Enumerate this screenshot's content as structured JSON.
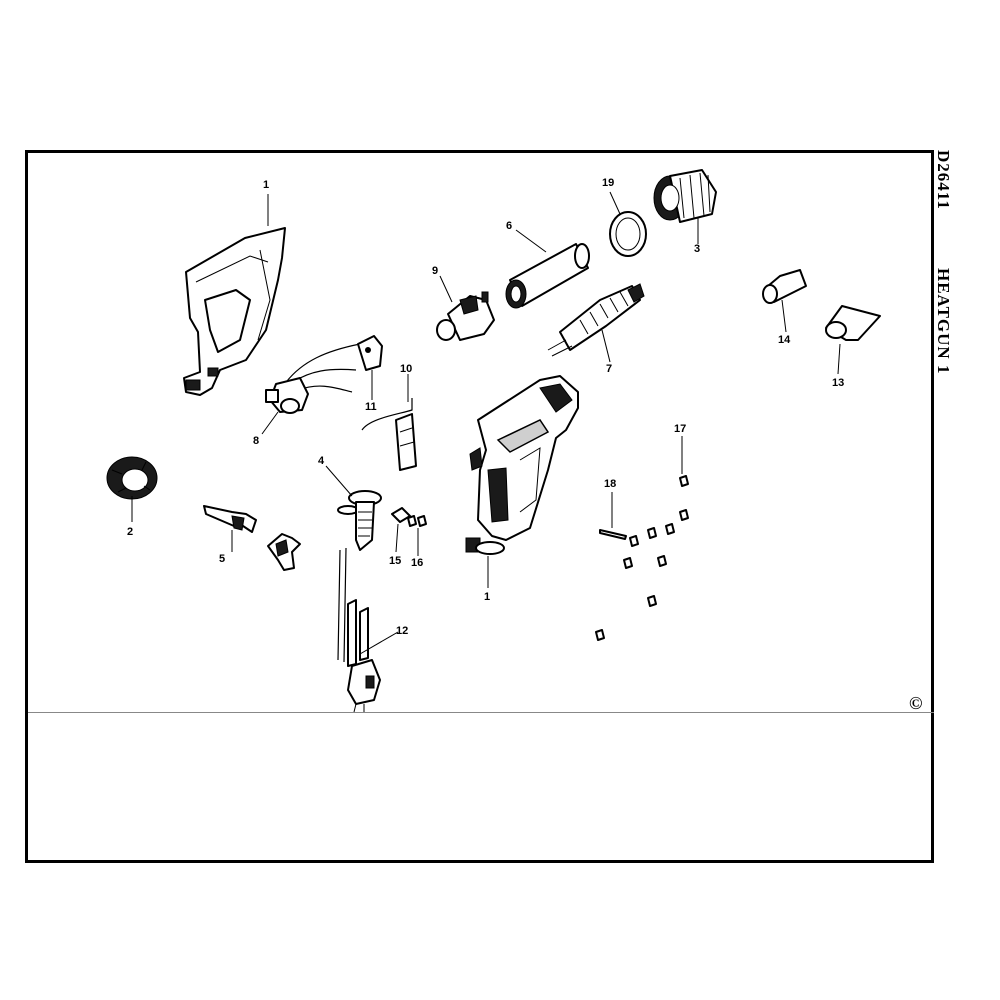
{
  "header": {
    "model": "D26411",
    "title": "HEATGUN  1"
  },
  "copyright_symbol": "©",
  "callouts": {
    "c1a": "1",
    "c1b": "1",
    "c2": "2",
    "c3": "3",
    "c4": "4",
    "c5": "5",
    "c6": "6",
    "c7": "7",
    "c8": "8",
    "c9": "9",
    "c10": "10",
    "c11": "11",
    "c12": "12",
    "c13": "13",
    "c14": "14",
    "c15": "15",
    "c16": "16",
    "c17": "17",
    "c18": "18",
    "c19": "19"
  }
}
